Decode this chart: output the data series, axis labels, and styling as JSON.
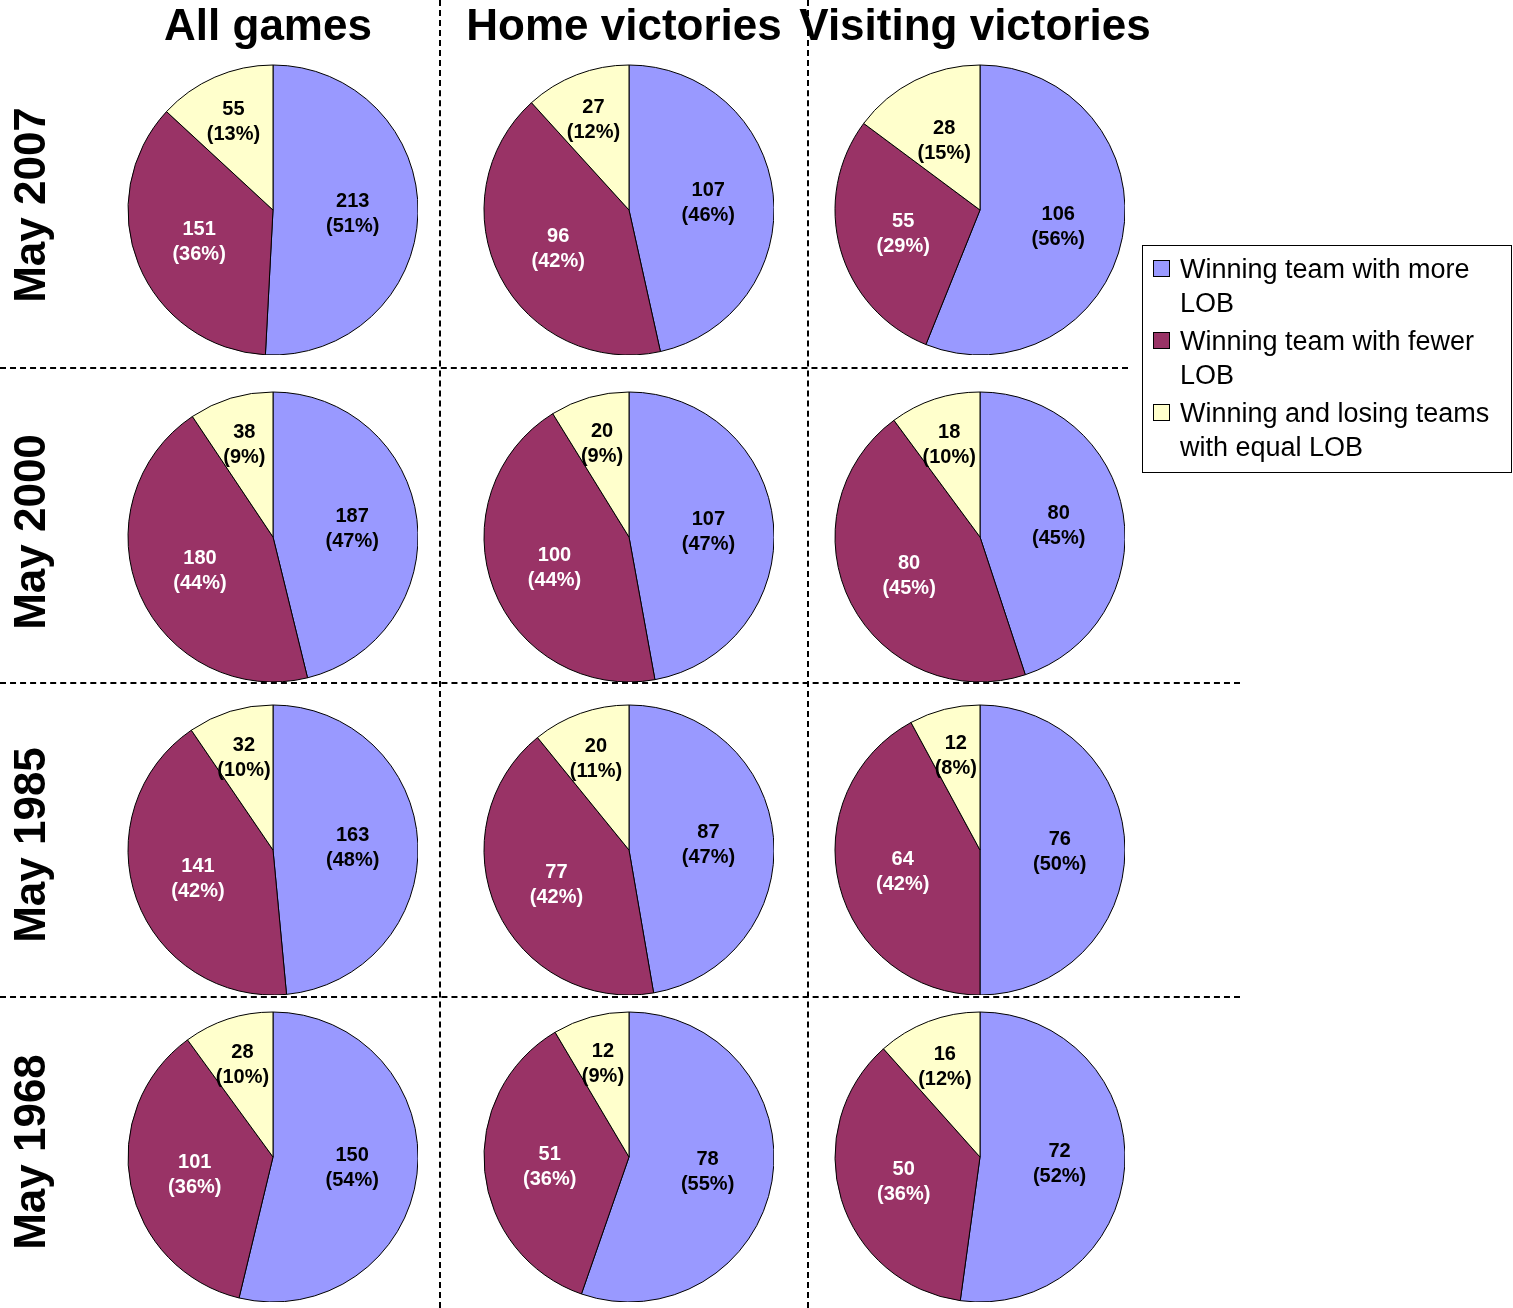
{
  "chart_data": [
    {
      "type": "pie",
      "title": "All games",
      "ylabel": "May 2007",
      "categories": [
        null,
        null,
        null
      ],
      "values": [
        213,
        151,
        55
      ],
      "value_labels": [
        "213 (51%)",
        "151 (36%)",
        "55 (13%)"
      ],
      "colors": [
        "#9999ff",
        "#993366",
        "#ffffcc"
      ]
    },
    {
      "type": "pie",
      "title": "Home victories",
      "categories": [
        null,
        null,
        null
      ],
      "values": [
        107,
        96,
        27
      ],
      "value_labels": [
        "107 (46%)",
        "96 (42%)",
        "27 (12%)"
      ],
      "colors": [
        "#9999ff",
        "#993366",
        "#ffffcc"
      ]
    },
    {
      "type": "pie",
      "title": "Visiting victories",
      "categories": [
        "Winning team with more LOB",
        "Winning team with fewer LOB",
        "Winning and losing teams with equal LOB"
      ],
      "values": [
        106,
        55,
        28
      ],
      "value_labels": [
        "106 (56%)",
        "55 (29%)",
        "28 (15%)"
      ],
      "colors": [
        "#9999ff",
        "#993366",
        "#ffffcc"
      ],
      "legend": "right"
    },
    {
      "type": "pie",
      "ylabel": "May 2000",
      "categories": [
        null,
        null,
        null
      ],
      "values": [
        187,
        180,
        38
      ],
      "value_labels": [
        "187 (47%)",
        "180 (44%)",
        "38 (9%)"
      ],
      "colors": [
        "#9999ff",
        "#993366",
        "#ffffcc"
      ]
    },
    {
      "type": "pie",
      "categories": [
        null,
        null,
        null
      ],
      "values": [
        107,
        100,
        20
      ],
      "value_labels": [
        "107 (47%)",
        "100 (44%)",
        "20 (9%)"
      ],
      "colors": [
        "#9999ff",
        "#993366",
        "#ffffcc"
      ]
    },
    {
      "type": "pie",
      "categories": [
        null,
        null,
        null
      ],
      "values": [
        80,
        80,
        18
      ],
      "value_labels": [
        "80 (45%)",
        "80 (45%)",
        "18 (10%)"
      ],
      "colors": [
        "#9999ff",
        "#993366",
        "#ffffcc"
      ]
    },
    {
      "type": "pie",
      "ylabel": "May 1985",
      "categories": [
        null,
        null,
        null
      ],
      "values": [
        163,
        141,
        32
      ],
      "value_labels": [
        "163 (48%)",
        "141 (42%)",
        "32 (10%)"
      ],
      "colors": [
        "#9999ff",
        "#993366",
        "#ffffcc"
      ]
    },
    {
      "type": "pie",
      "categories": [
        null,
        null,
        null
      ],
      "values": [
        87,
        77,
        20
      ],
      "value_labels": [
        "87 (47%)",
        "77 (42%)",
        "20 (11%)"
      ],
      "colors": [
        "#9999ff",
        "#993366",
        "#ffffcc"
      ]
    },
    {
      "type": "pie",
      "categories": [
        null,
        null,
        null
      ],
      "values": [
        76,
        64,
        12
      ],
      "value_labels": [
        "76 (50%)",
        "64 (42%)",
        "12 (8%)"
      ],
      "colors": [
        "#9999ff",
        "#993366",
        "#ffffcc"
      ]
    },
    {
      "type": "pie",
      "ylabel": "May 1968",
      "categories": [
        null,
        null,
        null
      ],
      "values": [
        150,
        101,
        28
      ],
      "value_labels": [
        "150 (54%)",
        "101 (36%)",
        "28 (10%)"
      ],
      "colors": [
        "#9999ff",
        "#993366",
        "#ffffcc"
      ]
    },
    {
      "type": "pie",
      "categories": [
        null,
        null,
        null
      ],
      "values": [
        78,
        51,
        12
      ],
      "value_labels": [
        "78 (55%)",
        "51 (36%)",
        "12 (9%)"
      ],
      "colors": [
        "#9999ff",
        "#993366",
        "#ffffcc"
      ]
    },
    {
      "type": "pie",
      "categories": [
        null,
        null,
        null
      ],
      "values": [
        72,
        50,
        16
      ],
      "value_labels": [
        "72 (52%)",
        "50 (36%)",
        "16 (12%)"
      ],
      "colors": [
        "#9999ff",
        "#993366",
        "#ffffcc"
      ]
    }
  ]
}
